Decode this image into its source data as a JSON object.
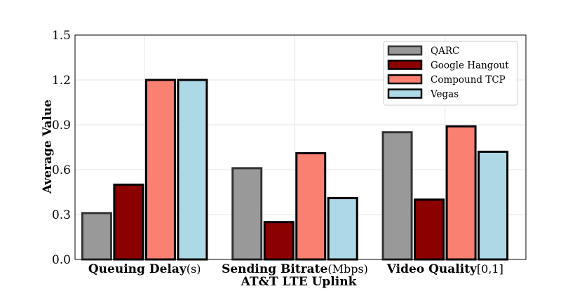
{
  "chart_data": {
    "type": "bar",
    "categories": [
      {
        "name": "Queuing Delay",
        "unit": "(s)"
      },
      {
        "name": "Sending Bitrate",
        "unit": "(Mbps)"
      },
      {
        "name": "Video Quality",
        "unit": "[0,1]"
      }
    ],
    "series": [
      {
        "name": "QARC",
        "values": [
          0.31,
          0.61,
          0.85
        ],
        "color": "#999999",
        "edge": "#333333"
      },
      {
        "name": "Google Hangout",
        "values": [
          0.5,
          0.25,
          0.4
        ],
        "color": "#8b0000",
        "edge": "#000000"
      },
      {
        "name": "Compound TCP",
        "values": [
          1.2,
          0.71,
          0.89
        ],
        "color": "#fa8072",
        "edge": "#000000"
      },
      {
        "name": "Vegas",
        "values": [
          1.2,
          0.41,
          0.72
        ],
        "color": "#add8e6",
        "edge": "#000000"
      }
    ],
    "xlabel": "AT&T LTE Uplink",
    "ylabel": "Average Value",
    "ylim": [
      0,
      1.5
    ],
    "yticks": [
      "0.0",
      "0.3",
      "0.6",
      "0.9",
      "1.2",
      "1.5"
    ],
    "grid": true,
    "legend_position": "top-right"
  }
}
